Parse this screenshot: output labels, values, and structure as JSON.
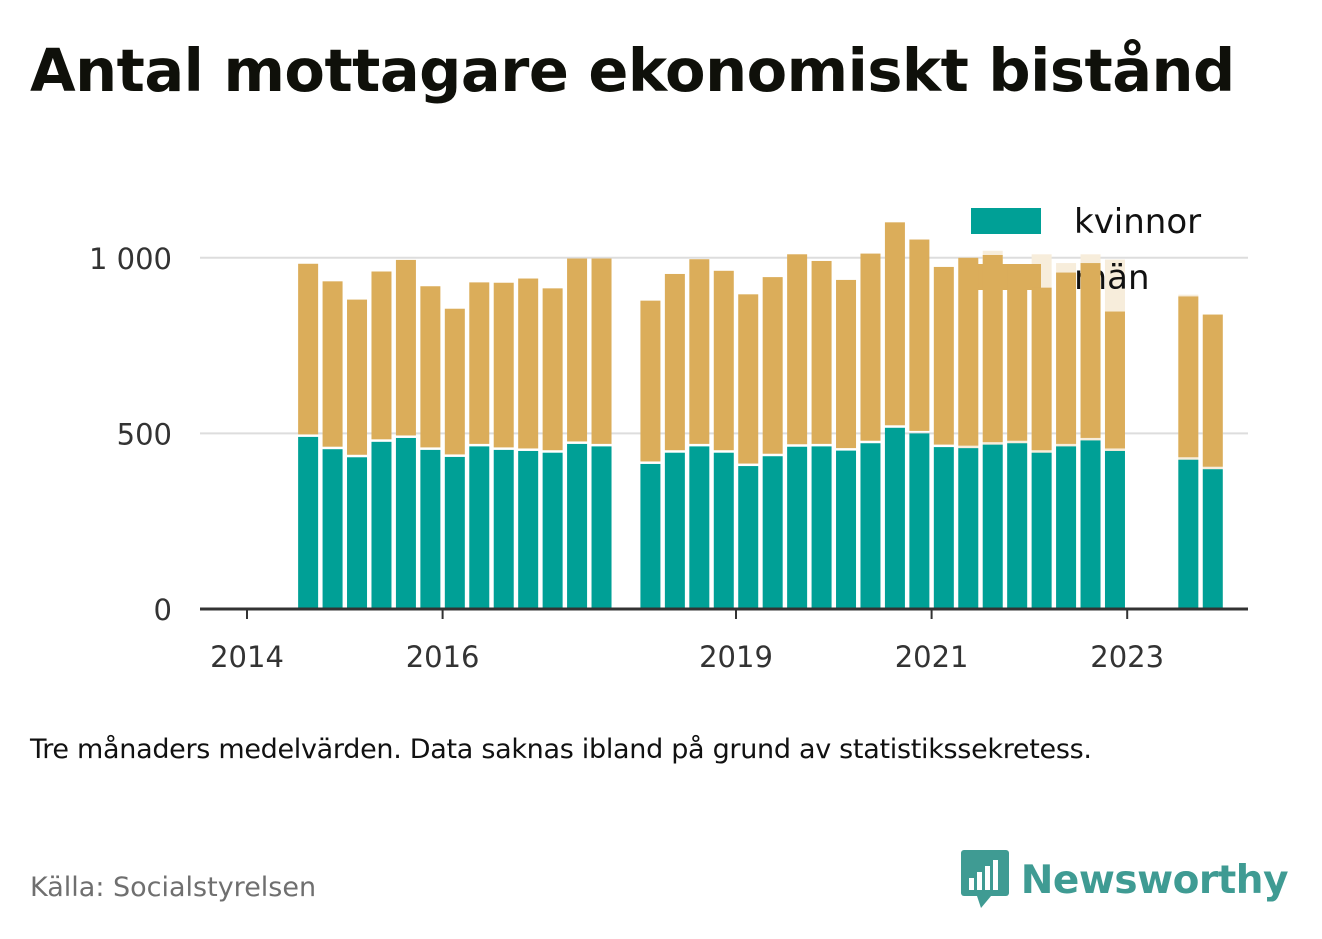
{
  "title": "Antal mottagare ekonomiskt bistånd",
  "note": "Tre månaders medelvärden. Data saknas ibland på grund av statistikssekretess.",
  "source": "Källa: Socialstyrelsen",
  "brand": {
    "name": "Newsworthy",
    "icon": "newsworthy-logo-icon"
  },
  "colors": {
    "kvinnor": "#00a096",
    "man": "#dbad5a",
    "man_faded": "#f7eddb",
    "grid": "#dddddd",
    "axis": "#333333"
  },
  "chart_data": {
    "type": "bar",
    "stacked": true,
    "x_unit": "quarter",
    "ylim": [
      0,
      1100
    ],
    "yticks": [
      {
        "value": 0,
        "label": "0"
      },
      {
        "value": 500,
        "label": "500"
      },
      {
        "value": 1000,
        "label": "1 000"
      }
    ],
    "xticks": [
      {
        "x": "2014-Q1",
        "label": "2014"
      },
      {
        "x": "2016-Q1",
        "label": "2016"
      },
      {
        "x": "2019-Q1",
        "label": "2019"
      },
      {
        "x": "2021-Q1",
        "label": "2021"
      },
      {
        "x": "2023-Q1",
        "label": "2023"
      }
    ],
    "legend": {
      "position": "top-right"
    },
    "grid": true,
    "x": [
      "2014-Q1",
      "2014-Q2",
      "2014-Q3",
      "2014-Q4",
      "2015-Q1",
      "2015-Q2",
      "2015-Q3",
      "2015-Q4",
      "2016-Q1",
      "2016-Q2",
      "2016-Q3",
      "2016-Q4",
      "2017-Q1",
      "2017-Q2",
      "2017-Q3",
      "2017-Q4",
      "2018-Q1",
      "2018-Q2",
      "2018-Q3",
      "2018-Q4",
      "2019-Q1",
      "2019-Q2",
      "2019-Q3",
      "2019-Q4",
      "2020-Q1",
      "2020-Q2",
      "2020-Q3",
      "2020-Q4",
      "2021-Q1",
      "2021-Q2",
      "2021-Q3",
      "2021-Q4",
      "2022-Q1",
      "2022-Q2",
      "2022-Q3",
      "2022-Q4",
      "2023-Q1",
      "2023-Q2",
      "2023-Q3",
      "2023-Q4"
    ],
    "series": [
      {
        "name": "kvinnor",
        "values": [
          null,
          null,
          490,
          455,
          432,
          476,
          487,
          453,
          433,
          463,
          453,
          450,
          445,
          470,
          463,
          null,
          413,
          445,
          463,
          445,
          407,
          435,
          462,
          463,
          451,
          472,
          516,
          500,
          461,
          458,
          468,
          472,
          445,
          463,
          480,
          450,
          null,
          null,
          425,
          398
        ]
      },
      {
        "name": "män",
        "values": [
          null,
          null,
          493,
          478,
          449,
          485,
          507,
          466,
          422,
          467,
          476,
          491,
          468,
          528,
          535,
          null,
          465,
          509,
          533,
          518,
          489,
          510,
          548,
          528,
          486,
          540,
          585,
          552,
          513,
          542,
          540,
          505,
          470,
          495,
          505,
          397,
          null,
          null,
          465,
          440
        ]
      }
    ],
    "faded_bars": [
      {
        "x": "2021-Q2",
        "value": 1000
      },
      {
        "x": "2021-Q3",
        "value": 1020
      },
      {
        "x": "2021-Q4",
        "value": 980
      },
      {
        "x": "2022-Q1",
        "value": 1010
      },
      {
        "x": "2022-Q2",
        "value": 985
      },
      {
        "x": "2022-Q3",
        "value": 1010
      },
      {
        "x": "2022-Q4",
        "value": 995
      },
      {
        "x": "2023-Q3",
        "value": 895
      },
      {
        "x": "2023-Q4",
        "value": 840
      }
    ]
  }
}
